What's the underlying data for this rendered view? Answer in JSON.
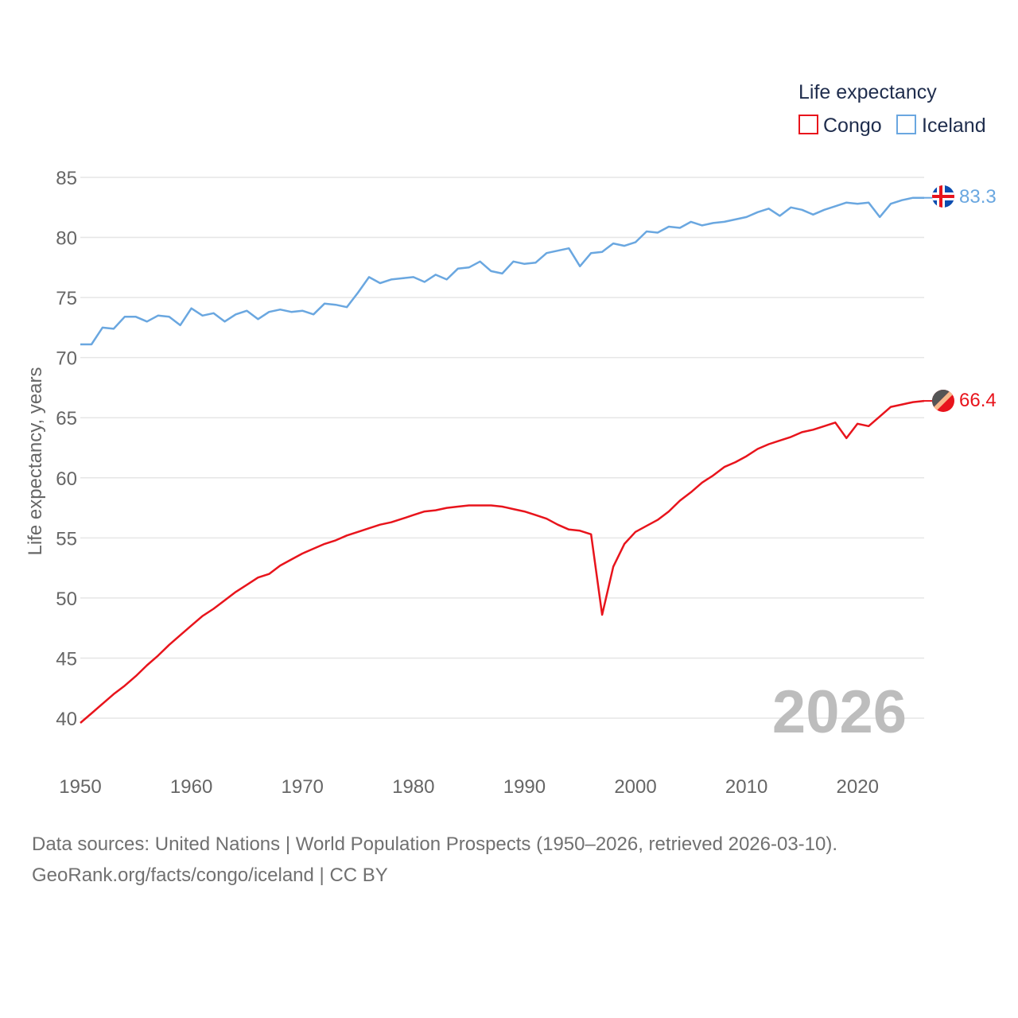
{
  "chart_data": {
    "type": "line",
    "title": "",
    "xlabel": "",
    "ylabel": "Life expectancy, years",
    "legend_title": "Life expectancy",
    "legend_position": "top-right",
    "xlim": [
      1950,
      2026
    ],
    "ylim": [
      39,
      86
    ],
    "x_ticks": [
      1950,
      1960,
      1970,
      1980,
      1990,
      2000,
      2010,
      2020
    ],
    "y_ticks": [
      40,
      45,
      50,
      55,
      60,
      65,
      70,
      75,
      80,
      85
    ],
    "grid": true,
    "current_year": "2026",
    "x": [
      1950,
      1951,
      1952,
      1953,
      1954,
      1955,
      1956,
      1957,
      1958,
      1959,
      1960,
      1961,
      1962,
      1963,
      1964,
      1965,
      1966,
      1967,
      1968,
      1969,
      1970,
      1971,
      1972,
      1973,
      1974,
      1975,
      1976,
      1977,
      1978,
      1979,
      1980,
      1981,
      1982,
      1983,
      1984,
      1985,
      1986,
      1987,
      1988,
      1989,
      1990,
      1991,
      1992,
      1993,
      1994,
      1995,
      1996,
      1997,
      1998,
      1999,
      2000,
      2001,
      2002,
      2003,
      2004,
      2005,
      2006,
      2007,
      2008,
      2009,
      2010,
      2011,
      2012,
      2013,
      2014,
      2015,
      2016,
      2017,
      2018,
      2019,
      2020,
      2021,
      2022,
      2023,
      2024,
      2025,
      2026
    ],
    "series": [
      {
        "name": "Congo",
        "color": "#e8141c",
        "end_label": "66.4",
        "end_marker": "congo-flag",
        "values": [
          39.6,
          40.4,
          41.2,
          42.0,
          42.7,
          43.5,
          44.4,
          45.2,
          46.1,
          46.9,
          47.7,
          48.5,
          49.1,
          49.8,
          50.5,
          51.1,
          51.7,
          52.0,
          52.7,
          53.2,
          53.7,
          54.1,
          54.5,
          54.8,
          55.2,
          55.5,
          55.8,
          56.1,
          56.3,
          56.6,
          56.9,
          57.2,
          57.3,
          57.5,
          57.6,
          57.7,
          57.7,
          57.7,
          57.6,
          57.4,
          57.2,
          56.9,
          56.6,
          56.1,
          55.7,
          55.6,
          55.3,
          48.6,
          52.6,
          54.5,
          55.5,
          56.0,
          56.5,
          57.2,
          58.1,
          58.8,
          59.6,
          60.2,
          60.9,
          61.3,
          61.8,
          62.4,
          62.8,
          63.1,
          63.4,
          63.8,
          64.0,
          64.3,
          64.6,
          63.3,
          64.5,
          64.3,
          65.1,
          65.9,
          66.1,
          66.3,
          66.4
        ]
      },
      {
        "name": "Iceland",
        "color": "#6aa7e0",
        "end_label": "83.3",
        "end_marker": "iceland-flag",
        "values": [
          71.1,
          71.1,
          72.5,
          72.4,
          73.4,
          73.4,
          73.0,
          73.5,
          73.4,
          72.7,
          74.1,
          73.5,
          73.7,
          73.0,
          73.6,
          73.9,
          73.2,
          73.8,
          74.0,
          73.8,
          73.9,
          73.6,
          74.5,
          74.4,
          74.2,
          75.4,
          76.7,
          76.2,
          76.5,
          76.6,
          76.7,
          76.3,
          76.9,
          76.5,
          77.4,
          77.5,
          78.0,
          77.2,
          77.0,
          78.0,
          77.8,
          77.9,
          78.7,
          78.9,
          79.1,
          77.6,
          78.7,
          78.8,
          79.5,
          79.3,
          79.6,
          80.5,
          80.4,
          80.9,
          80.8,
          81.3,
          81.0,
          81.2,
          81.3,
          81.5,
          81.7,
          82.1,
          82.4,
          81.8,
          82.5,
          82.3,
          81.9,
          82.3,
          82.6,
          82.9,
          82.8,
          82.9,
          81.7,
          82.8,
          83.1,
          83.3,
          83.3
        ]
      }
    ]
  },
  "footer": {
    "source_line": "Data sources: United Nations | World Population Prospects (1950–2026, retrieved 2026-03-10).",
    "credit_line": "GeoRank.org/facts/congo/iceland | CC BY"
  }
}
